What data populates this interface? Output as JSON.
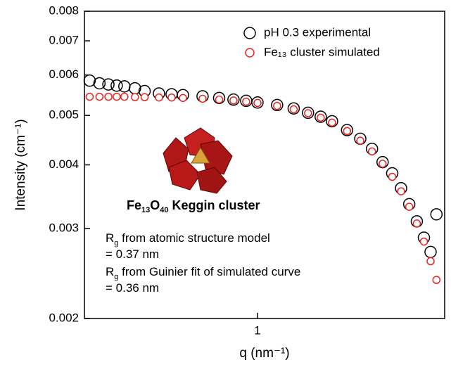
{
  "chart_data": {
    "type": "scatter",
    "x_label": "q (nm⁻¹)",
    "y_label": "Intensity (cm⁻¹)",
    "x": [
      0.21,
      0.23,
      0.25,
      0.27,
      0.29,
      0.32,
      0.35,
      0.4,
      0.45,
      0.5,
      0.6,
      0.7,
      0.8,
      0.9,
      1.0,
      1.2,
      1.4,
      1.6,
      1.8,
      2.0,
      2.3,
      2.6,
      2.9,
      3.2,
      3.5,
      3.8,
      4.1,
      4.4,
      4.7,
      5.0,
      5.28
    ],
    "series": [
      {
        "name": "pH 0.3 experimental",
        "color": "#000000",
        "values": [
          0.00585,
          0.00578,
          0.00575,
          0.00572,
          0.0057,
          0.00565,
          0.00558,
          0.00552,
          0.0055,
          0.00548,
          0.00545,
          0.00541,
          0.00537,
          0.00534,
          0.0053,
          0.00524,
          0.00516,
          0.00506,
          0.00497,
          0.00487,
          0.00468,
          0.0045,
          0.0043,
          0.00405,
          0.00385,
          0.0036,
          0.00335,
          0.0031,
          0.00288,
          0.0027,
          0.0032
        ]
      },
      {
        "name": "Fe₁₃ cluster simulated",
        "color": "#e8231f",
        "values": [
          0.00544,
          0.00544,
          0.00544,
          0.00544,
          0.00544,
          0.00543,
          0.00543,
          0.00542,
          0.00542,
          0.00541,
          0.00539,
          0.00537,
          0.00535,
          0.00532,
          0.00529,
          0.00522,
          0.00514,
          0.00505,
          0.00495,
          0.00484,
          0.00466,
          0.00446,
          0.00425,
          0.00402,
          0.00379,
          0.00355,
          0.00331,
          0.00307,
          0.00283,
          0.00259,
          0.00238
        ]
      }
    ],
    "xlim": [
      0.2,
      5.7
    ],
    "ylim": [
      0.002,
      0.008
    ],
    "xticks": [
      1
    ],
    "yticks": [
      0.002,
      0.003,
      0.004,
      0.005,
      0.006,
      0.007,
      0.008
    ],
    "log_x": true,
    "log_y": true,
    "legend": "top-right",
    "annotations": [
      [
        "Fe",
        "13",
        "O",
        "40",
        " Keggin cluster"
      ],
      [
        "R",
        "g",
        " from atomic structure model"
      ],
      [
        "= 0.37 nm"
      ],
      [
        "R",
        "g",
        " from Guinier fit of simulated curve"
      ],
      [
        "= 0.36 nm"
      ]
    ]
  }
}
